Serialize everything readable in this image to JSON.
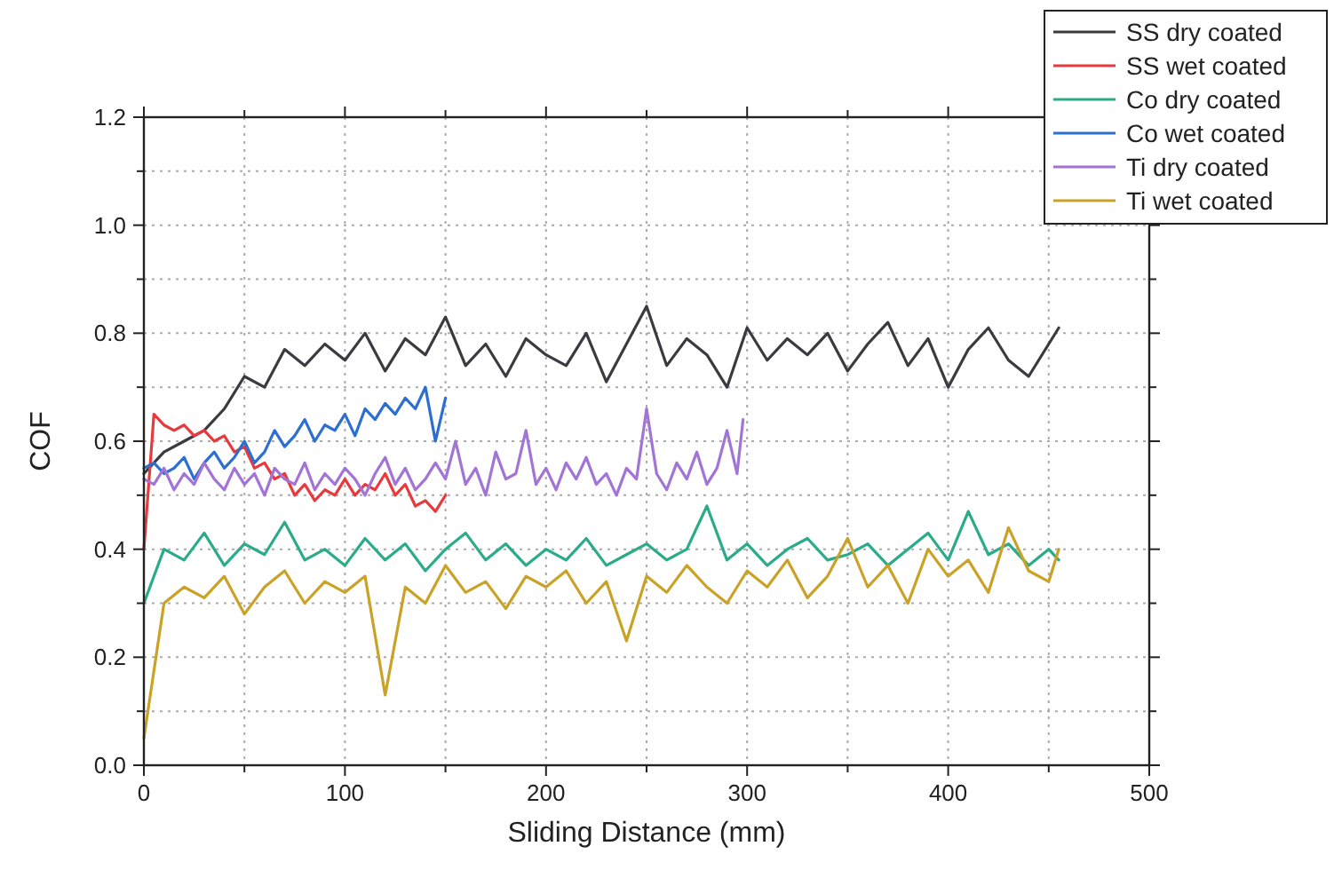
{
  "chart_data": {
    "type": "line",
    "xlabel": "Sliding Distance (mm)",
    "ylabel": "COF",
    "xlim": [
      0,
      500
    ],
    "ylim": [
      0,
      1.2
    ],
    "xticks": [
      0,
      {
        "value": 50,
        "label": null
      },
      100,
      {
        "value": 150,
        "label": null
      },
      200,
      {
        "value": 250,
        "label": null
      },
      300,
      {
        "value": 350,
        "label": null
      },
      400,
      {
        "value": 450,
        "label": null
      },
      500
    ],
    "yticks": [
      {
        "value": 0,
        "label": "0.0"
      },
      {
        "value": 0.1,
        "label": null
      },
      0.2,
      {
        "value": 0.3,
        "label": null
      },
      0.4,
      {
        "value": 0.5,
        "label": null
      },
      0.6,
      {
        "value": 0.7,
        "label": null
      },
      0.8,
      {
        "value": 0.9,
        "label": null
      },
      {
        "value": 1,
        "label": "1.0"
      },
      {
        "value": 1.1,
        "label": null
      },
      1.2
    ],
    "grid": true,
    "legend": "top right",
    "marker": "none",
    "line_style": "solid",
    "series": [
      {
        "name": "SS dry coated",
        "color": "#3a3a40",
        "x": [
          0,
          10,
          20,
          30,
          40,
          50,
          60,
          70,
          80,
          90,
          100,
          110,
          120,
          130,
          140,
          150,
          160,
          170,
          180,
          190,
          200,
          210,
          220,
          230,
          240,
          250,
          260,
          270,
          280,
          290,
          300,
          310,
          320,
          330,
          340,
          350,
          360,
          370,
          380,
          390,
          400,
          410,
          420,
          430,
          440,
          450,
          455
        ],
        "values": [
          0.54,
          0.58,
          0.6,
          0.62,
          0.66,
          0.72,
          0.7,
          0.77,
          0.74,
          0.78,
          0.75,
          0.8,
          0.73,
          0.79,
          0.76,
          0.83,
          0.74,
          0.78,
          0.72,
          0.79,
          0.76,
          0.74,
          0.8,
          0.71,
          0.78,
          0.85,
          0.74,
          0.79,
          0.76,
          0.7,
          0.81,
          0.75,
          0.79,
          0.76,
          0.8,
          0.73,
          0.78,
          0.82,
          0.74,
          0.79,
          0.7,
          0.77,
          0.81,
          0.75,
          0.72,
          0.78,
          0.81
        ]
      },
      {
        "name": "SS wet coated",
        "color": "#e8393d",
        "x": [
          0,
          5,
          10,
          15,
          20,
          25,
          30,
          35,
          40,
          45,
          50,
          55,
          60,
          65,
          70,
          75,
          80,
          85,
          90,
          95,
          100,
          105,
          110,
          115,
          120,
          125,
          130,
          135,
          140,
          145,
          150
        ],
        "values": [
          0.4,
          0.65,
          0.63,
          0.62,
          0.63,
          0.61,
          0.62,
          0.6,
          0.61,
          0.58,
          0.59,
          0.55,
          0.56,
          0.53,
          0.54,
          0.5,
          0.52,
          0.49,
          0.51,
          0.5,
          0.53,
          0.5,
          0.52,
          0.51,
          0.54,
          0.5,
          0.52,
          0.48,
          0.49,
          0.47,
          0.5
        ]
      },
      {
        "name": "Co dry coated",
        "color": "#2bab8a",
        "x": [
          0,
          10,
          20,
          30,
          40,
          50,
          60,
          70,
          80,
          90,
          100,
          110,
          120,
          130,
          140,
          150,
          160,
          170,
          180,
          190,
          200,
          210,
          220,
          230,
          240,
          250,
          260,
          270,
          280,
          290,
          300,
          310,
          320,
          330,
          340,
          350,
          360,
          370,
          380,
          390,
          400,
          410,
          420,
          430,
          440,
          450,
          455
        ],
        "values": [
          0.3,
          0.4,
          0.38,
          0.43,
          0.37,
          0.41,
          0.39,
          0.45,
          0.38,
          0.4,
          0.37,
          0.42,
          0.38,
          0.41,
          0.36,
          0.4,
          0.43,
          0.38,
          0.41,
          0.37,
          0.4,
          0.38,
          0.42,
          0.37,
          0.39,
          0.41,
          0.38,
          0.4,
          0.48,
          0.38,
          0.41,
          0.37,
          0.4,
          0.42,
          0.38,
          0.39,
          0.41,
          0.37,
          0.4,
          0.43,
          0.38,
          0.47,
          0.39,
          0.41,
          0.37,
          0.4,
          0.38
        ]
      },
      {
        "name": "Co wet coated",
        "color": "#2c6fd1",
        "x": [
          0,
          5,
          10,
          15,
          20,
          25,
          30,
          35,
          40,
          45,
          50,
          55,
          60,
          65,
          70,
          75,
          80,
          85,
          90,
          95,
          100,
          105,
          110,
          115,
          120,
          125,
          130,
          135,
          140,
          145,
          150
        ],
        "values": [
          0.55,
          0.56,
          0.54,
          0.55,
          0.57,
          0.53,
          0.56,
          0.58,
          0.55,
          0.57,
          0.6,
          0.56,
          0.58,
          0.62,
          0.59,
          0.61,
          0.64,
          0.6,
          0.63,
          0.62,
          0.65,
          0.61,
          0.66,
          0.64,
          0.67,
          0.65,
          0.68,
          0.66,
          0.7,
          0.6,
          0.68
        ]
      },
      {
        "name": "Ti dry coated",
        "color": "#a274d6",
        "x": [
          0,
          5,
          10,
          15,
          20,
          25,
          30,
          35,
          40,
          45,
          50,
          55,
          60,
          65,
          70,
          75,
          80,
          85,
          90,
          95,
          100,
          105,
          110,
          115,
          120,
          125,
          130,
          135,
          140,
          145,
          150,
          155,
          160,
          165,
          170,
          175,
          180,
          185,
          190,
          195,
          200,
          205,
          210,
          215,
          220,
          225,
          230,
          235,
          240,
          245,
          250,
          255,
          260,
          265,
          270,
          275,
          280,
          285,
          290,
          295,
          298
        ],
        "values": [
          0.53,
          0.52,
          0.55,
          0.51,
          0.54,
          0.52,
          0.56,
          0.53,
          0.51,
          0.55,
          0.52,
          0.54,
          0.5,
          0.55,
          0.53,
          0.52,
          0.56,
          0.51,
          0.54,
          0.52,
          0.55,
          0.53,
          0.5,
          0.54,
          0.57,
          0.52,
          0.55,
          0.51,
          0.53,
          0.56,
          0.53,
          0.6,
          0.52,
          0.55,
          0.5,
          0.58,
          0.53,
          0.54,
          0.62,
          0.52,
          0.55,
          0.51,
          0.56,
          0.53,
          0.57,
          0.52,
          0.54,
          0.5,
          0.55,
          0.53,
          0.66,
          0.54,
          0.51,
          0.56,
          0.53,
          0.58,
          0.52,
          0.55,
          0.62,
          0.54,
          0.64
        ]
      },
      {
        "name": "Ti wet coated",
        "color": "#c9a227",
        "x": [
          0,
          10,
          20,
          30,
          40,
          50,
          60,
          70,
          80,
          90,
          100,
          110,
          120,
          130,
          140,
          150,
          160,
          170,
          180,
          190,
          200,
          210,
          220,
          230,
          240,
          250,
          260,
          270,
          280,
          290,
          300,
          310,
          320,
          330,
          340,
          350,
          360,
          370,
          380,
          390,
          400,
          410,
          420,
          430,
          440,
          450,
          455
        ],
        "values": [
          0.05,
          0.3,
          0.33,
          0.31,
          0.35,
          0.28,
          0.33,
          0.36,
          0.3,
          0.34,
          0.32,
          0.35,
          0.13,
          0.33,
          0.3,
          0.37,
          0.32,
          0.34,
          0.29,
          0.35,
          0.33,
          0.36,
          0.3,
          0.34,
          0.23,
          0.35,
          0.32,
          0.37,
          0.33,
          0.3,
          0.36,
          0.33,
          0.38,
          0.31,
          0.35,
          0.42,
          0.33,
          0.37,
          0.3,
          0.4,
          0.35,
          0.38,
          0.32,
          0.44,
          0.36,
          0.34,
          0.4
        ]
      }
    ]
  }
}
